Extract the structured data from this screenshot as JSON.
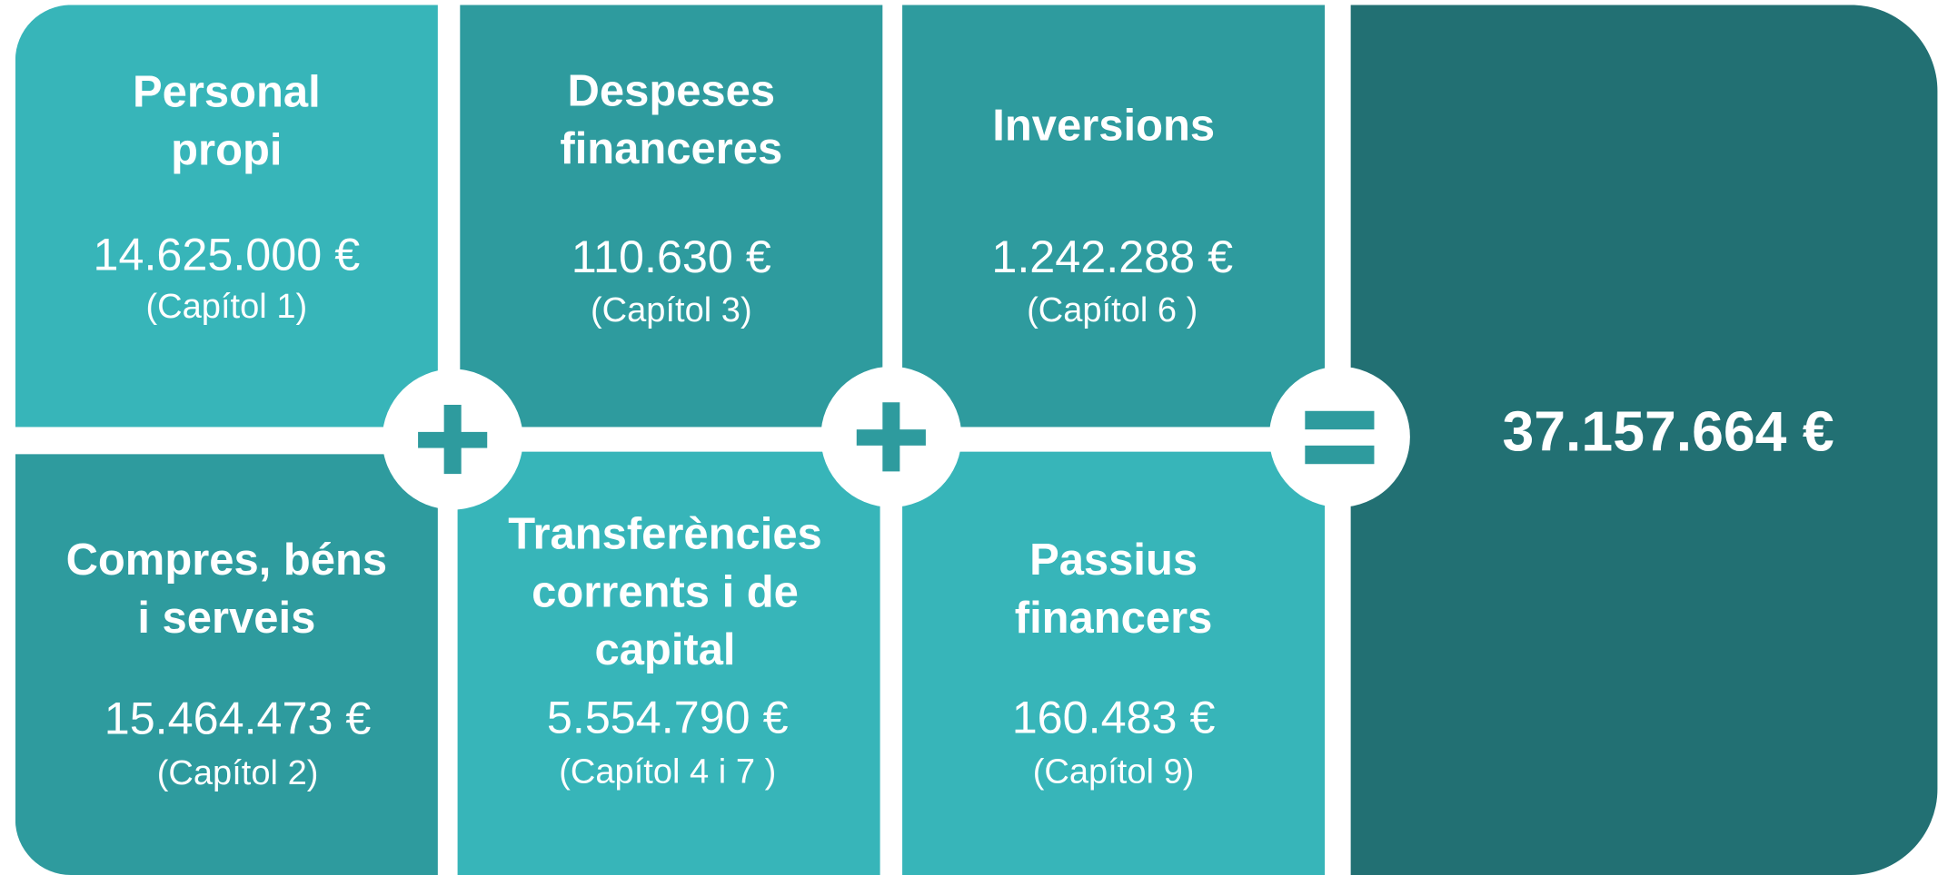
{
  "tiles": [
    {
      "title_lines": [
        "Personal",
        "propi"
      ],
      "amount": "14.625.000 €",
      "chapter": "(Capítol 1)"
    },
    {
      "title_lines": [
        "Despeses",
        "financeres"
      ],
      "amount": "110.630 €",
      "chapter": "(Capítol 3)"
    },
    {
      "title_lines": [
        "Inversions"
      ],
      "amount": "1.242.288 €",
      "chapter": "(Capítol 6 )"
    },
    {
      "title_lines": [
        "Compres, béns",
        "i serveis"
      ],
      "amount": "15.464.473 €",
      "chapter": "(Capítol 2)"
    },
    {
      "title_lines": [
        "Transferències",
        "corrents i de",
        "capital"
      ],
      "amount": "5.554.790 €",
      "chapter": "(Capítol 4 i 7 )"
    },
    {
      "title_lines": [
        "Passius",
        "financers"
      ],
      "amount": "160.483 €",
      "chapter": "(Capítol 9)"
    }
  ],
  "total": "37.157.664 €"
}
